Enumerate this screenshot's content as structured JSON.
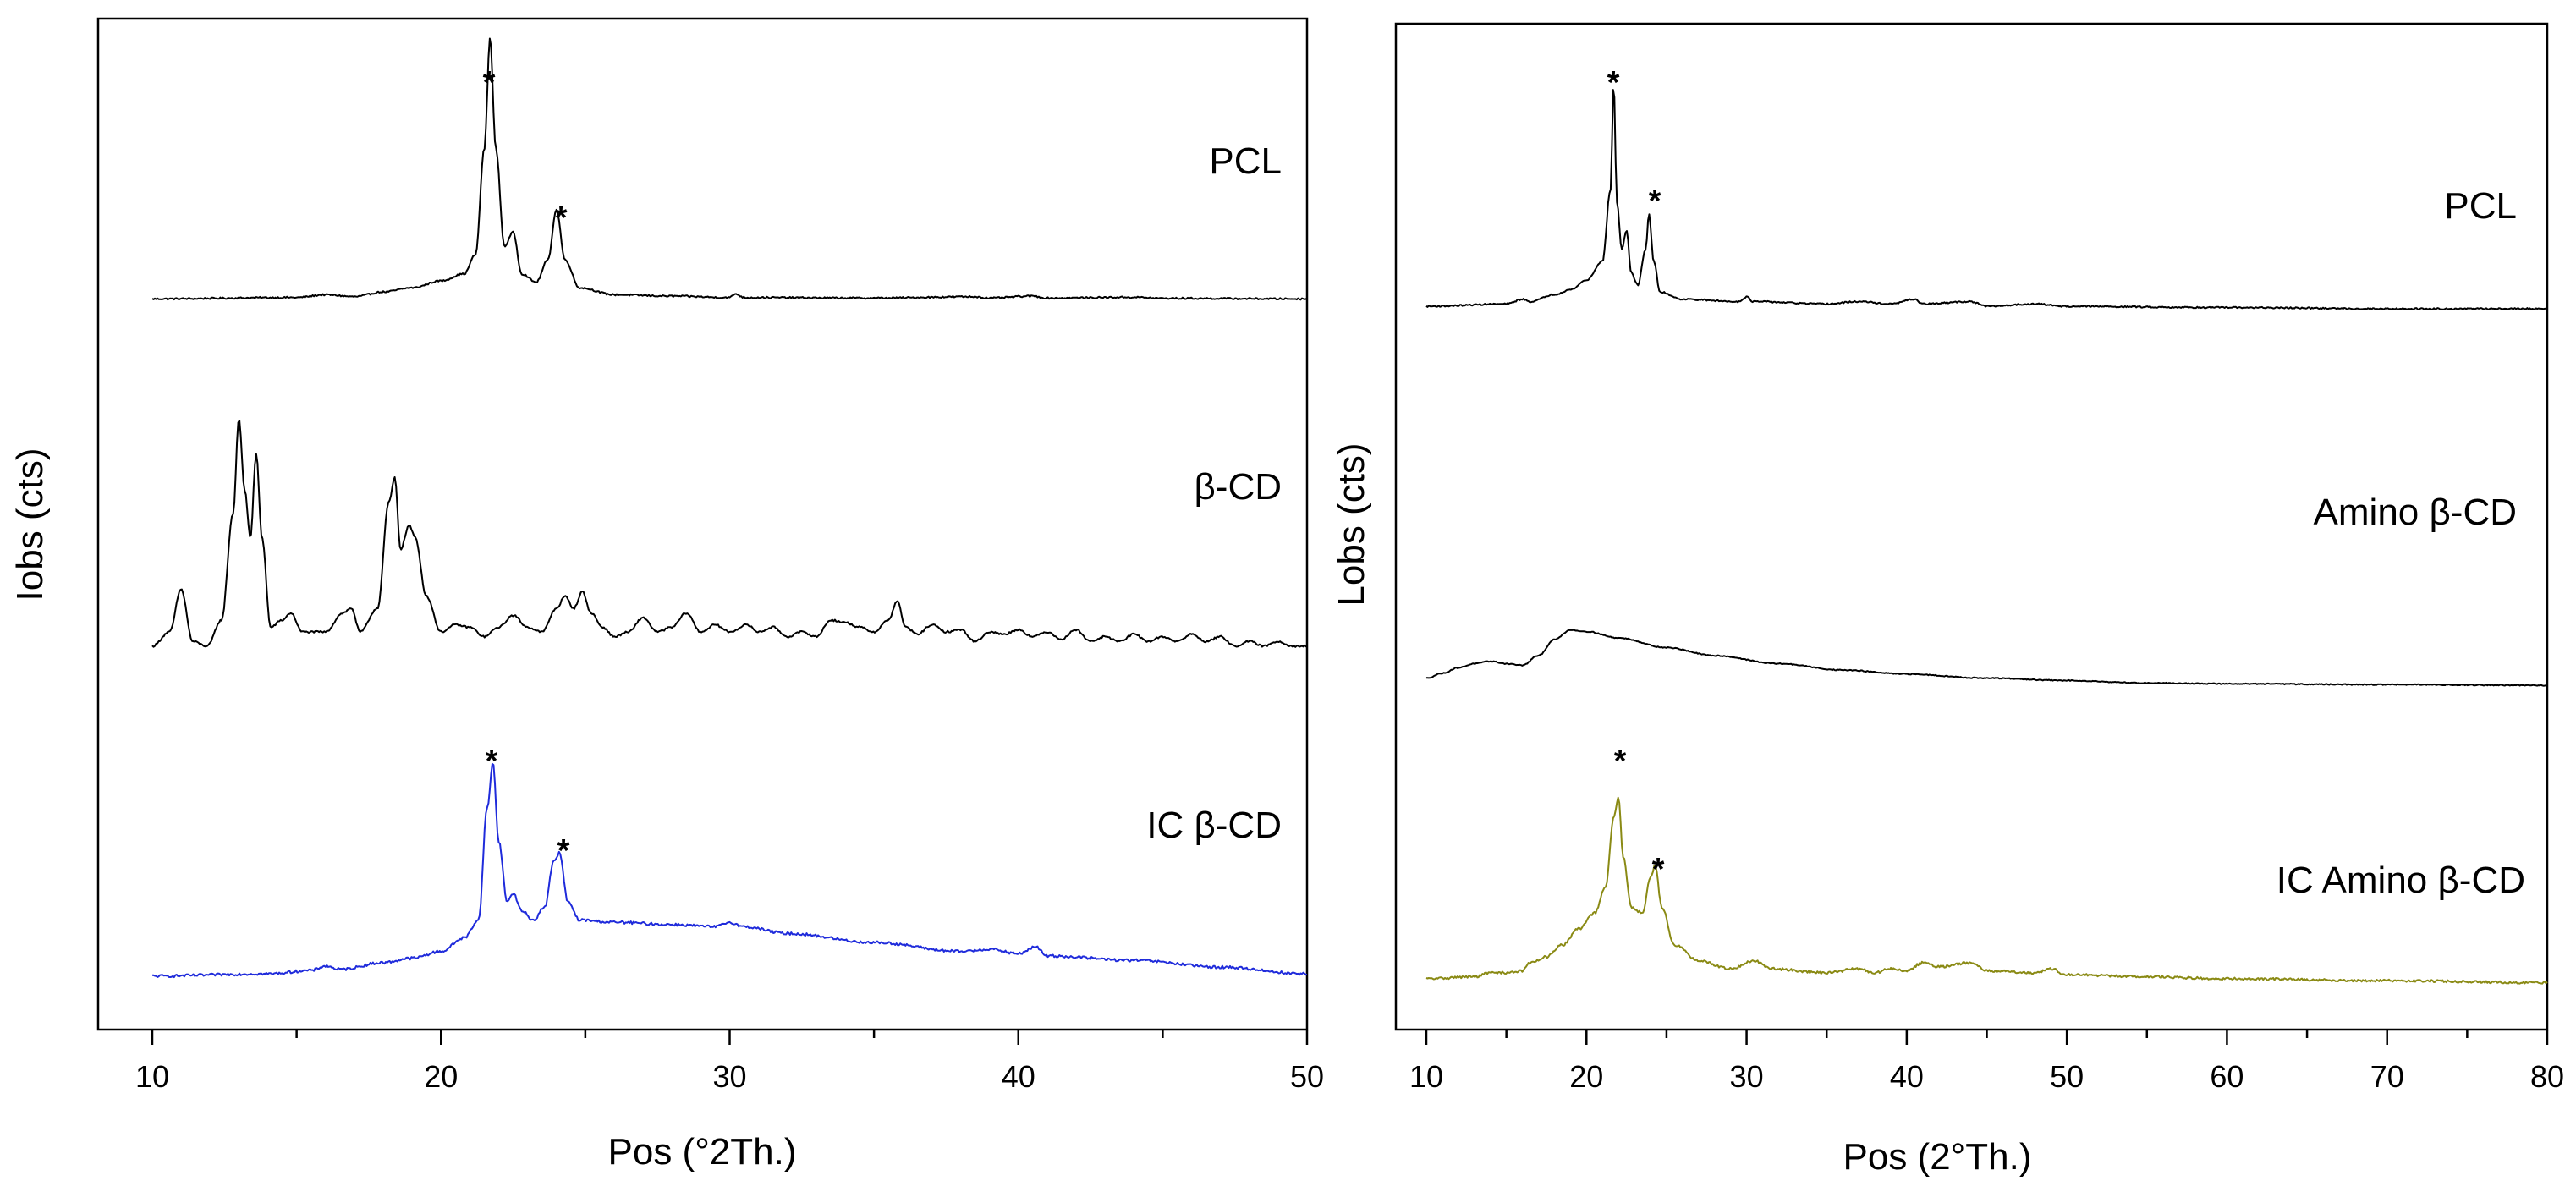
{
  "chart_data": [
    {
      "type": "line",
      "panel": "left",
      "xlabel": "Pos (°2Th.)",
      "ylabel": "Iobs (cts)",
      "xlim": [
        10,
        50
      ],
      "xticks": [
        10,
        20,
        30,
        40,
        50
      ],
      "xtick_labels": [
        "10",
        "20",
        "30",
        "40",
        "50"
      ],
      "y_units": "arbitrary (stacked, offset)",
      "series": [
        {
          "name": "PCL",
          "color": "#000000",
          "baseline": 0.06,
          "noise": 0.003,
          "points": [
            [
              10,
              0.06
            ],
            [
              15,
              0.065
            ],
            [
              16,
              0.075
            ],
            [
              17,
              0.068
            ],
            [
              18,
              0.085
            ],
            [
              19,
              0.1
            ],
            [
              20,
              0.125
            ],
            [
              20.8,
              0.15
            ],
            [
              21.2,
              0.22
            ],
            [
              21.5,
              0.6
            ],
            [
              21.7,
              1.0
            ],
            [
              21.9,
              0.6
            ],
            [
              22.2,
              0.25
            ],
            [
              22.5,
              0.3
            ],
            [
              22.8,
              0.15
            ],
            [
              23.3,
              0.12
            ],
            [
              23.7,
              0.2
            ],
            [
              24.0,
              0.38
            ],
            [
              24.3,
              0.2
            ],
            [
              24.8,
              0.1
            ],
            [
              26,
              0.075
            ],
            [
              28,
              0.07
            ],
            [
              30,
              0.065
            ],
            [
              30.2,
              0.078
            ],
            [
              30.5,
              0.065
            ],
            [
              35,
              0.063
            ],
            [
              38.5,
              0.068
            ],
            [
              39,
              0.063
            ],
            [
              40.5,
              0.07
            ],
            [
              41,
              0.063
            ],
            [
              44,
              0.066
            ],
            [
              45,
              0.062
            ],
            [
              50,
              0.06
            ]
          ]
        },
        {
          "name": "β-CD",
          "color": "#000000",
          "baseline": 0.04,
          "noise": 0.004,
          "points": [
            [
              10,
              0.04
            ],
            [
              10.6,
              0.1
            ],
            [
              11.0,
              0.28
            ],
            [
              11.4,
              0.06
            ],
            [
              11.9,
              0.04
            ],
            [
              12.4,
              0.15
            ],
            [
              12.8,
              0.6
            ],
            [
              13.0,
              1.0
            ],
            [
              13.2,
              0.7
            ],
            [
              13.4,
              0.5
            ],
            [
              13.6,
              0.85
            ],
            [
              13.8,
              0.5
            ],
            [
              14.1,
              0.12
            ],
            [
              14.5,
              0.15
            ],
            [
              14.8,
              0.18
            ],
            [
              15.2,
              0.1
            ],
            [
              16,
              0.1
            ],
            [
              16.6,
              0.18
            ],
            [
              16.9,
              0.2
            ],
            [
              17.2,
              0.1
            ],
            [
              17.8,
              0.2
            ],
            [
              18.2,
              0.65
            ],
            [
              18.4,
              0.75
            ],
            [
              18.6,
              0.45
            ],
            [
              18.9,
              0.55
            ],
            [
              19.1,
              0.5
            ],
            [
              19.5,
              0.25
            ],
            [
              20,
              0.1
            ],
            [
              20.5,
              0.13
            ],
            [
              21,
              0.12
            ],
            [
              21.5,
              0.08
            ],
            [
              22,
              0.12
            ],
            [
              22.5,
              0.17
            ],
            [
              23,
              0.12
            ],
            [
              23.5,
              0.1
            ],
            [
              24,
              0.2
            ],
            [
              24.3,
              0.25
            ],
            [
              24.6,
              0.2
            ],
            [
              24.9,
              0.27
            ],
            [
              25.2,
              0.18
            ],
            [
              25.6,
              0.12
            ],
            [
              26,
              0.08
            ],
            [
              26.5,
              0.1
            ],
            [
              27,
              0.16
            ],
            [
              27.5,
              0.1
            ],
            [
              28,
              0.12
            ],
            [
              28.5,
              0.18
            ],
            [
              29,
              0.1
            ],
            [
              29.5,
              0.13
            ],
            [
              30,
              0.1
            ],
            [
              30.6,
              0.13
            ],
            [
              31,
              0.1
            ],
            [
              31.5,
              0.12
            ],
            [
              32,
              0.08
            ],
            [
              32.5,
              0.1
            ],
            [
              33,
              0.08
            ],
            [
              33.5,
              0.15
            ],
            [
              34,
              0.14
            ],
            [
              34.5,
              0.12
            ],
            [
              35,
              0.1
            ],
            [
              35.5,
              0.15
            ],
            [
              35.8,
              0.23
            ],
            [
              36.1,
              0.12
            ],
            [
              36.5,
              0.09
            ],
            [
              37,
              0.13
            ],
            [
              37.5,
              0.1
            ],
            [
              38,
              0.11
            ],
            [
              38.5,
              0.06
            ],
            [
              39,
              0.1
            ],
            [
              39.5,
              0.09
            ],
            [
              40,
              0.11
            ],
            [
              40.5,
              0.08
            ],
            [
              41,
              0.1
            ],
            [
              41.5,
              0.07
            ],
            [
              42,
              0.11
            ],
            [
              42.5,
              0.06
            ],
            [
              43,
              0.08
            ],
            [
              43.5,
              0.06
            ],
            [
              44,
              0.09
            ],
            [
              44.5,
              0.06
            ],
            [
              45,
              0.08
            ],
            [
              45.5,
              0.06
            ],
            [
              46,
              0.09
            ],
            [
              46.5,
              0.06
            ],
            [
              47,
              0.08
            ],
            [
              47.5,
              0.04
            ],
            [
              48,
              0.06
            ],
            [
              48.5,
              0.04
            ],
            [
              49,
              0.06
            ],
            [
              49.5,
              0.04
            ],
            [
              50,
              0.04
            ]
          ]
        },
        {
          "name": "IC β-CD",
          "color": "#1f2bdb",
          "baseline": 0.05,
          "noise": 0.006,
          "points": [
            [
              10,
              0.05
            ],
            [
              14,
              0.06
            ],
            [
              15.5,
              0.075
            ],
            [
              16,
              0.095
            ],
            [
              16.5,
              0.08
            ],
            [
              18,
              0.11
            ],
            [
              19,
              0.13
            ],
            [
              20,
              0.16
            ],
            [
              20.8,
              0.22
            ],
            [
              21.3,
              0.3
            ],
            [
              21.6,
              0.8
            ],
            [
              21.8,
              1.0
            ],
            [
              22.0,
              0.65
            ],
            [
              22.3,
              0.38
            ],
            [
              22.5,
              0.42
            ],
            [
              22.8,
              0.34
            ],
            [
              23.2,
              0.3
            ],
            [
              23.6,
              0.36
            ],
            [
              23.9,
              0.56
            ],
            [
              24.1,
              0.6
            ],
            [
              24.4,
              0.38
            ],
            [
              24.8,
              0.3
            ],
            [
              26,
              0.29
            ],
            [
              28,
              0.28
            ],
            [
              29.5,
              0.27
            ],
            [
              30,
              0.29
            ],
            [
              30.5,
              0.27
            ],
            [
              32,
              0.24
            ],
            [
              35,
              0.2
            ],
            [
              38,
              0.16
            ],
            [
              39,
              0.17
            ],
            [
              40,
              0.15
            ],
            [
              40.6,
              0.18
            ],
            [
              41,
              0.14
            ],
            [
              44,
              0.12
            ],
            [
              47,
              0.09
            ],
            [
              50,
              0.06
            ]
          ]
        }
      ],
      "annotations": [
        "*",
        "*",
        "*",
        "*"
      ]
    },
    {
      "type": "line",
      "panel": "right",
      "xlabel": "Pos (2°Th.)",
      "ylabel": "Lobs (cts)",
      "xlim": [
        10,
        80
      ],
      "xticks": [
        10,
        20,
        30,
        40,
        50,
        60,
        70,
        80
      ],
      "xtick_labels": [
        "10",
        "20",
        "30",
        "40",
        "50",
        "60",
        "70",
        "80"
      ],
      "y_units": "arbitrary (stacked, offset)",
      "series": [
        {
          "name": "PCL",
          "color": "#000000",
          "baseline": 0.05,
          "noise": 0.003,
          "points": [
            [
              10,
              0.06
            ],
            [
              15,
              0.07
            ],
            [
              16,
              0.09
            ],
            [
              16.5,
              0.08
            ],
            [
              18,
              0.11
            ],
            [
              19,
              0.13
            ],
            [
              20,
              0.17
            ],
            [
              21,
              0.25
            ],
            [
              21.5,
              0.55
            ],
            [
              21.7,
              1.0
            ],
            [
              21.9,
              0.5
            ],
            [
              22.2,
              0.3
            ],
            [
              22.5,
              0.38
            ],
            [
              22.8,
              0.2
            ],
            [
              23.2,
              0.15
            ],
            [
              23.7,
              0.3
            ],
            [
              23.9,
              0.45
            ],
            [
              24.2,
              0.25
            ],
            [
              24.6,
              0.12
            ],
            [
              26,
              0.09
            ],
            [
              29.5,
              0.08
            ],
            [
              30,
              0.1
            ],
            [
              30.4,
              0.08
            ],
            [
              35,
              0.07
            ],
            [
              37,
              0.08
            ],
            [
              39,
              0.07
            ],
            [
              40.5,
              0.09
            ],
            [
              41,
              0.07
            ],
            [
              44,
              0.08
            ],
            [
              45,
              0.06
            ],
            [
              48,
              0.07
            ],
            [
              50,
              0.06
            ],
            [
              60,
              0.055
            ],
            [
              70,
              0.05
            ],
            [
              80,
              0.05
            ]
          ]
        },
        {
          "name": "Amino β-CD",
          "color": "#000000",
          "baseline": 0.05,
          "noise": 0.006,
          "points": [
            [
              10,
              0.12
            ],
            [
              11,
              0.18
            ],
            [
              12,
              0.25
            ],
            [
              13,
              0.3
            ],
            [
              14,
              0.33
            ],
            [
              15,
              0.3
            ],
            [
              16,
              0.28
            ],
            [
              17,
              0.4
            ],
            [
              18,
              0.6
            ],
            [
              19,
              0.72
            ],
            [
              20,
              0.7
            ],
            [
              22,
              0.62
            ],
            [
              25,
              0.5
            ],
            [
              28,
              0.4
            ],
            [
              32,
              0.3
            ],
            [
              36,
              0.22
            ],
            [
              40,
              0.17
            ],
            [
              45,
              0.12
            ],
            [
              50,
              0.09
            ],
            [
              55,
              0.06
            ],
            [
              60,
              0.05
            ],
            [
              70,
              0.04
            ],
            [
              80,
              0.03
            ]
          ]
        },
        {
          "name": "IC Amino β-CD",
          "color": "#8a8a14",
          "baseline": 0.05,
          "noise": 0.006,
          "points": [
            [
              10,
              0.09
            ],
            [
              13,
              0.1
            ],
            [
              14,
              0.12
            ],
            [
              15,
              0.12
            ],
            [
              16,
              0.13
            ],
            [
              16.5,
              0.17
            ],
            [
              17.5,
              0.2
            ],
            [
              18.5,
              0.26
            ],
            [
              19.5,
              0.34
            ],
            [
              20.5,
              0.42
            ],
            [
              21.2,
              0.55
            ],
            [
              21.7,
              0.9
            ],
            [
              22.0,
              1.0
            ],
            [
              22.3,
              0.7
            ],
            [
              22.8,
              0.45
            ],
            [
              23.5,
              0.42
            ],
            [
              24.0,
              0.6
            ],
            [
              24.3,
              0.66
            ],
            [
              24.7,
              0.45
            ],
            [
              25.5,
              0.26
            ],
            [
              27,
              0.18
            ],
            [
              29,
              0.14
            ],
            [
              30.5,
              0.18
            ],
            [
              31.5,
              0.14
            ],
            [
              35,
              0.12
            ],
            [
              37,
              0.14
            ],
            [
              38,
              0.12
            ],
            [
              39,
              0.14
            ],
            [
              40,
              0.13
            ],
            [
              41,
              0.17
            ],
            [
              42,
              0.15
            ],
            [
              44,
              0.17
            ],
            [
              45,
              0.13
            ],
            [
              48,
              0.12
            ],
            [
              49,
              0.14
            ],
            [
              50,
              0.11
            ],
            [
              55,
              0.1
            ],
            [
              60,
              0.09
            ],
            [
              70,
              0.08
            ],
            [
              80,
              0.07
            ]
          ]
        }
      ],
      "annotations": [
        "*",
        "*",
        "*",
        "*"
      ]
    }
  ]
}
